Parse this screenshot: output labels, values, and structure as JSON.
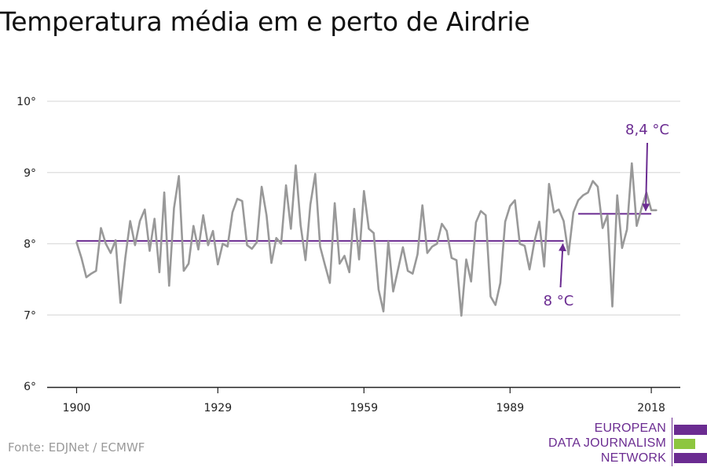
{
  "title": "Temperatura média em e perto de Airdrie",
  "source": "Fonte: EDJNet / ECMWF",
  "logo": {
    "lines": [
      "EUROPEAN",
      "DATA JOURNALISM",
      "NETWORK"
    ],
    "colors": {
      "purple": "#6b2c91",
      "green": "#8dc63f"
    }
  },
  "colors": {
    "series": "#999999",
    "average": "#6b2c91",
    "grid": "#dddddd",
    "axis": "#222222"
  },
  "chart_data": {
    "type": "line",
    "title": "Temperatura média em e perto de Airdrie",
    "xlabel": "",
    "ylabel": "",
    "xlim": [
      1900,
      2019
    ],
    "ylim": [
      6,
      10
    ],
    "x_ticks": [
      1900,
      1929,
      1959,
      1989,
      2018
    ],
    "y_ticks": [
      6,
      7,
      8,
      9,
      10
    ],
    "y_tick_labels": [
      "6°",
      "7°",
      "8°",
      "9°",
      "10°"
    ],
    "grid": true,
    "series": [
      {
        "x_start": 1900,
        "x_end": 2019,
        "values": [
          8.02,
          7.8,
          7.53,
          7.58,
          7.62,
          8.22,
          8.0,
          7.87,
          8.05,
          7.17,
          7.8,
          8.32,
          7.98,
          8.32,
          8.48,
          7.9,
          8.35,
          7.6,
          8.72,
          7.41,
          8.5,
          8.95,
          7.62,
          7.72,
          8.25,
          7.92,
          8.4,
          7.98,
          8.18,
          7.71,
          8.0,
          7.96,
          8.44,
          8.63,
          8.6,
          7.98,
          7.93,
          8.02,
          8.8,
          8.4,
          7.73,
          8.08,
          8.0,
          8.82,
          8.21,
          9.1,
          8.26,
          7.77,
          8.55,
          8.98,
          7.96,
          7.7,
          7.45,
          8.57,
          7.72,
          7.83,
          7.6,
          8.49,
          7.78,
          8.74,
          8.21,
          8.15,
          7.36,
          7.05,
          8.03,
          7.33,
          7.64,
          7.95,
          7.62,
          7.58,
          7.85,
          8.54,
          7.87,
          7.96,
          8.0,
          8.28,
          8.18,
          7.8,
          7.77,
          6.99,
          7.78,
          7.47,
          8.3,
          8.46,
          8.4,
          7.26,
          7.14,
          7.45,
          8.31,
          8.53,
          8.61,
          8.0,
          7.97,
          7.64,
          8.03,
          8.31,
          7.68,
          8.84,
          8.44,
          8.48,
          8.32,
          7.85,
          8.44,
          8.61,
          8.68,
          8.72,
          8.88,
          8.8,
          8.22,
          8.4,
          7.12,
          8.68,
          7.94,
          8.2,
          9.13,
          8.25,
          8.5,
          8.72,
          8.47,
          8.47
        ]
      }
    ],
    "reference_lines": [
      {
        "label": "8 °C",
        "value": 8.04,
        "x_start": 1900,
        "x_end": 2000
      },
      {
        "label": "8,4 °C",
        "value": 8.42,
        "x_start": 2003,
        "x_end": 2018
      }
    ]
  }
}
